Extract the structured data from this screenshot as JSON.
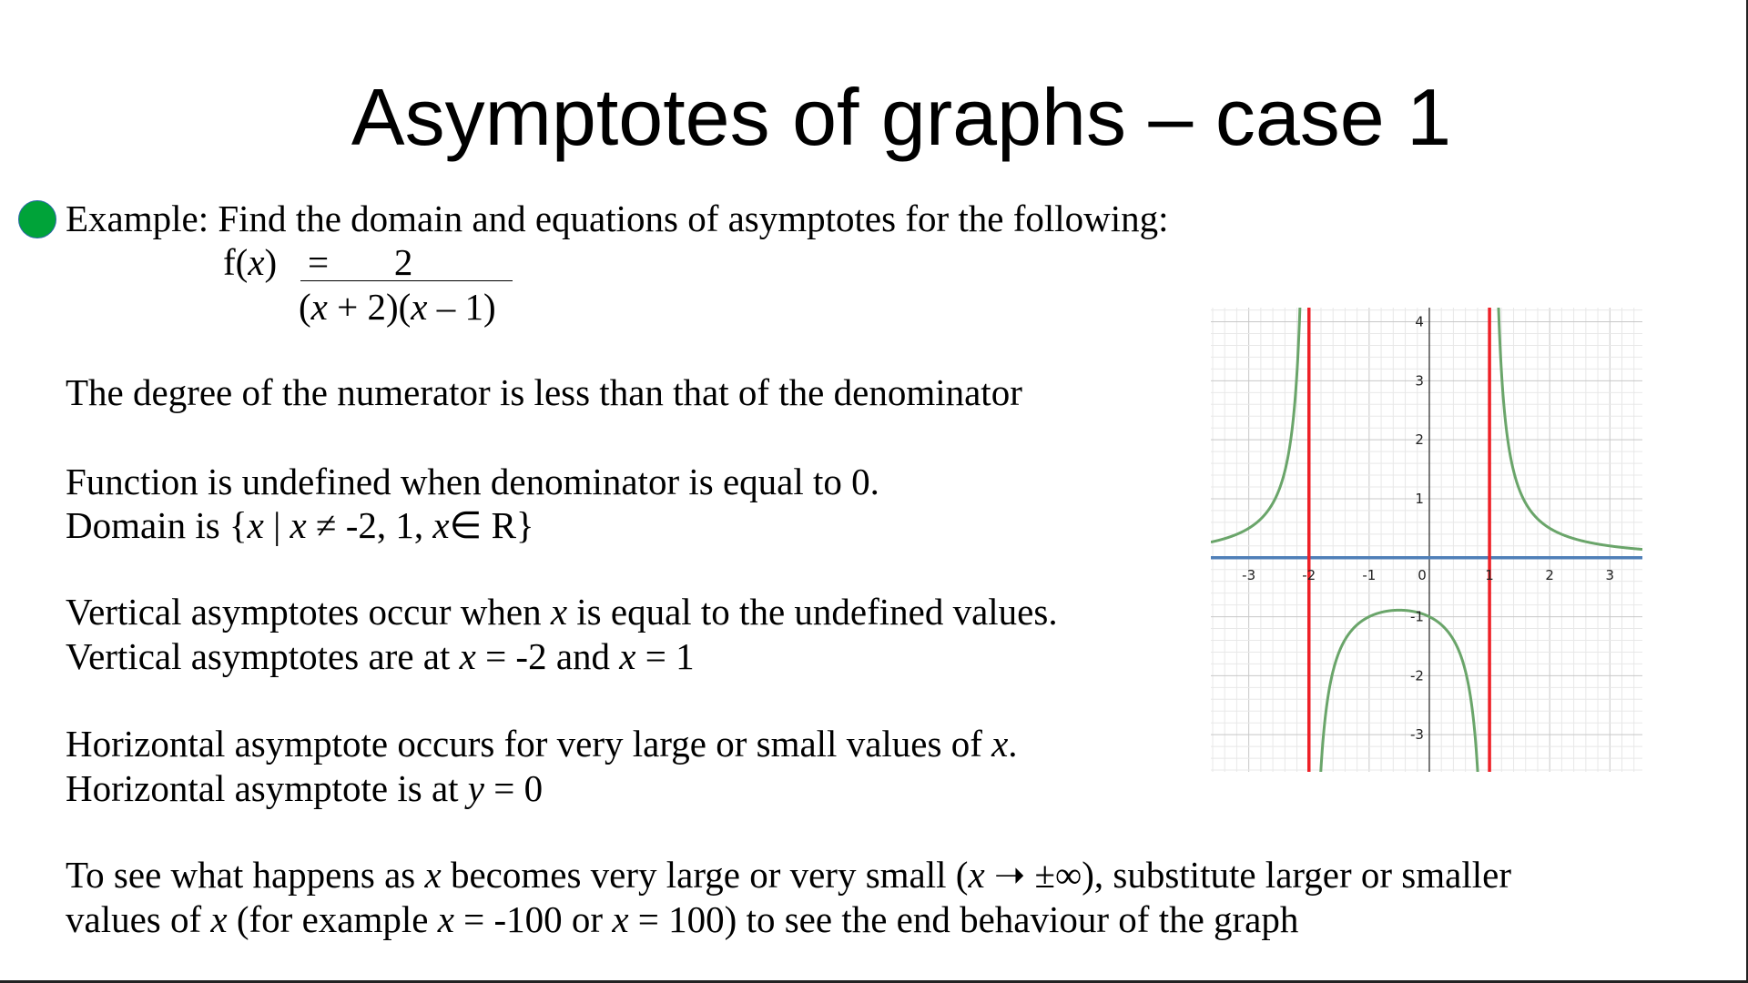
{
  "title": "Asymptotes of graphs – case 1",
  "bullet_color": "#00a339",
  "example": "Example: Find the domain and equations of asymptotes for the following:",
  "equation": {
    "lhs": [
      {
        "t": "f("
      },
      {
        "t": "x",
        "i": true
      },
      {
        "t": ")"
      }
    ],
    "numerator": "=       2",
    "denominator": [
      {
        "t": "("
      },
      {
        "t": "x",
        "i": true
      },
      {
        "t": " + 2)("
      },
      {
        "t": "x",
        "i": true
      },
      {
        "t": " – 1)"
      }
    ]
  },
  "lines": [
    [
      {
        "t": "The degree of the numerator is less than that of the denominator"
      }
    ],
    [
      {
        "t": "Function is undefined when denominator is equal to 0."
      }
    ],
    [
      {
        "t": "Domain is {"
      },
      {
        "t": "x",
        "i": true
      },
      {
        "t": " | "
      },
      {
        "t": "x",
        "i": true
      },
      {
        "t": " ≠ -2, 1,  "
      },
      {
        "t": "x",
        "i": true
      },
      {
        "t": "∈ R}"
      }
    ],
    [
      {
        "t": "Vertical asymptotes occur when "
      },
      {
        "t": "x",
        "i": true
      },
      {
        "t": " is equal to the undefined values."
      }
    ],
    [
      {
        "t": "Vertical asymptotes are at "
      },
      {
        "t": "x",
        "i": true
      },
      {
        "t": " = -2 and "
      },
      {
        "t": "x",
        "i": true
      },
      {
        "t": " = 1"
      }
    ],
    [
      {
        "t": "Horizontal asymptote occurs for very large or small values of "
      },
      {
        "t": "x",
        "i": true
      },
      {
        "t": "."
      }
    ],
    [
      {
        "t": "Horizontal asymptote is at "
      },
      {
        "t": "y",
        "i": true
      },
      {
        "t": " = 0"
      }
    ],
    [
      {
        "t": "To see what happens as "
      },
      {
        "t": "x",
        "i": true
      },
      {
        "t": " becomes very large or very small ("
      },
      {
        "t": "x",
        "i": true
      },
      {
        "t": " ➝ ±∞), substitute larger or smaller"
      }
    ],
    [
      {
        "t": "values of "
      },
      {
        "t": "x",
        "i": true
      },
      {
        "t": " (for example "
      },
      {
        "t": "x",
        "i": true
      },
      {
        "t": " = -100 or "
      },
      {
        "t": "x",
        "i": true
      },
      {
        "t": " = 100) to see the end behaviour of the graph"
      }
    ]
  ],
  "chart_data": {
    "type": "line",
    "function": "f(x) = 2/((x+2)(x-1))",
    "xlim": [
      -3.63,
      3.54
    ],
    "ylim": [
      -3.63,
      4.24
    ],
    "x_ticks": [
      "-3",
      "-2",
      "-1",
      "0",
      "1",
      "2",
      "3"
    ],
    "y_ticks": [
      "-3",
      "-2",
      "-1",
      "1",
      "2",
      "3",
      "4"
    ],
    "grid": true,
    "vertical_asymptotes": [
      -2,
      1
    ],
    "horizontal_asymptote": 0,
    "colors": {
      "curve": "#6aa56a",
      "vertical_asymptote": "#ee2027",
      "horizontal_asymptote": "#4f7fb8",
      "axis": "#333333",
      "grid_major": "#c8c8c8",
      "grid_minor": "#e8e8e8"
    }
  }
}
